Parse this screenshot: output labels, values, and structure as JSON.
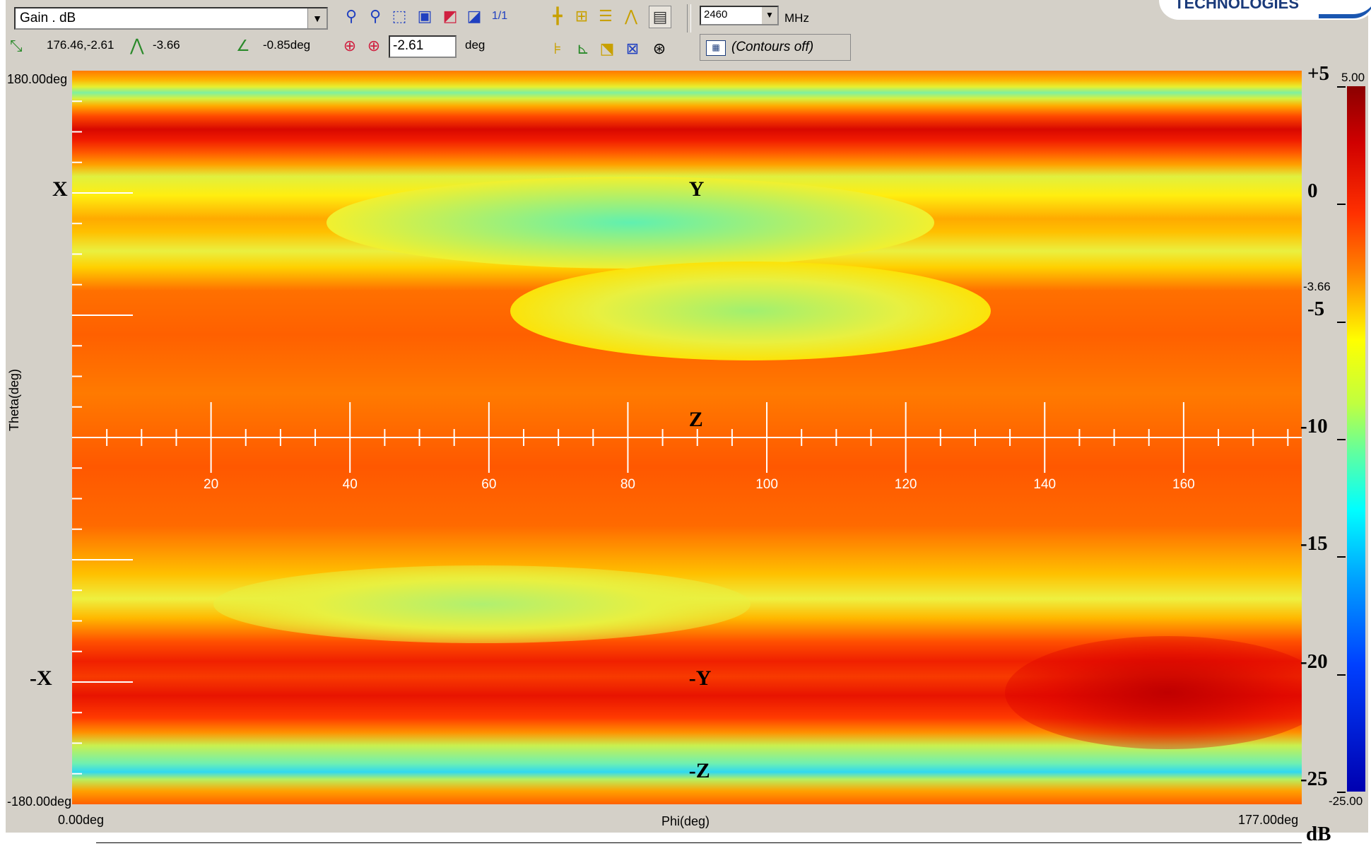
{
  "toolbar": {
    "quantity_select": "Gain . dB",
    "cursor_readout": "176.46,-2.61",
    "peak_readout": "-3.66",
    "angle_readout": "-0.85deg",
    "offset_value": "-2.61",
    "offset_unit": "deg",
    "frequency_value": "2460",
    "frequency_unit": "MHz",
    "contour_button": "(Contours off)",
    "logo_text": "TECHNOLOGIES"
  },
  "icons": [
    "zoom-out-icon",
    "zoom-in-icon",
    "zoom-box-icon",
    "zoom-fit-icon",
    "color-map-icon",
    "palette-icon",
    "one-to-one-icon",
    "crosshair-icon",
    "pan-icon",
    "grid-icon",
    "antenna-icon",
    "report-icon",
    "marker-add-icon",
    "marker-move-icon",
    "cut-icon",
    "plot-icon",
    "target-icon",
    "rotate-icon",
    "center-icon"
  ],
  "chart_data": {
    "type": "heatmap",
    "title": "",
    "xlabel": "Phi(deg)",
    "ylabel": "Theta(deg)",
    "x_range": [
      0,
      177
    ],
    "y_range": [
      -180,
      180
    ],
    "x_range_labels": [
      "0.00deg",
      "177.00deg"
    ],
    "y_range_labels": [
      "180.00deg",
      "-180.00deg"
    ],
    "x_ticks": [
      20,
      40,
      60,
      80,
      100,
      120,
      140,
      160
    ],
    "colorbar": {
      "unit": "dB",
      "range": [
        -25,
        5
      ],
      "range_labels": [
        "5.00",
        "-25.00"
      ],
      "tick_labels": [
        "+5",
        "0",
        "-5",
        "-10",
        "-15",
        "-20",
        "-25"
      ],
      "ticks": [
        5,
        0,
        -5,
        -10,
        -15,
        -20,
        -25
      ],
      "marker_value": -3.66,
      "marker_label": "-3.66",
      "colors": [
        "#8b0000",
        "#ff3000",
        "#ffff00",
        "#60ffa0",
        "#00ffff",
        "#0040ff",
        "#0000b0"
      ]
    },
    "direction_markers": [
      {
        "label": "X",
        "phi": 0,
        "theta": 120
      },
      {
        "label": "Y",
        "phi": 90,
        "theta": 120
      },
      {
        "label": "Z",
        "phi": 90,
        "theta": 0
      },
      {
        "label": "-X",
        "phi": 0,
        "theta": -120
      },
      {
        "label": "-Y",
        "phi": 90,
        "theta": -120
      },
      {
        "label": "-Z",
        "phi": 90,
        "theta": -180
      }
    ],
    "cursor": {
      "phi": 176.46,
      "theta": -2.61
    },
    "peak_gain_db": -3.66,
    "gain_range_db": [
      -25,
      5
    ]
  }
}
